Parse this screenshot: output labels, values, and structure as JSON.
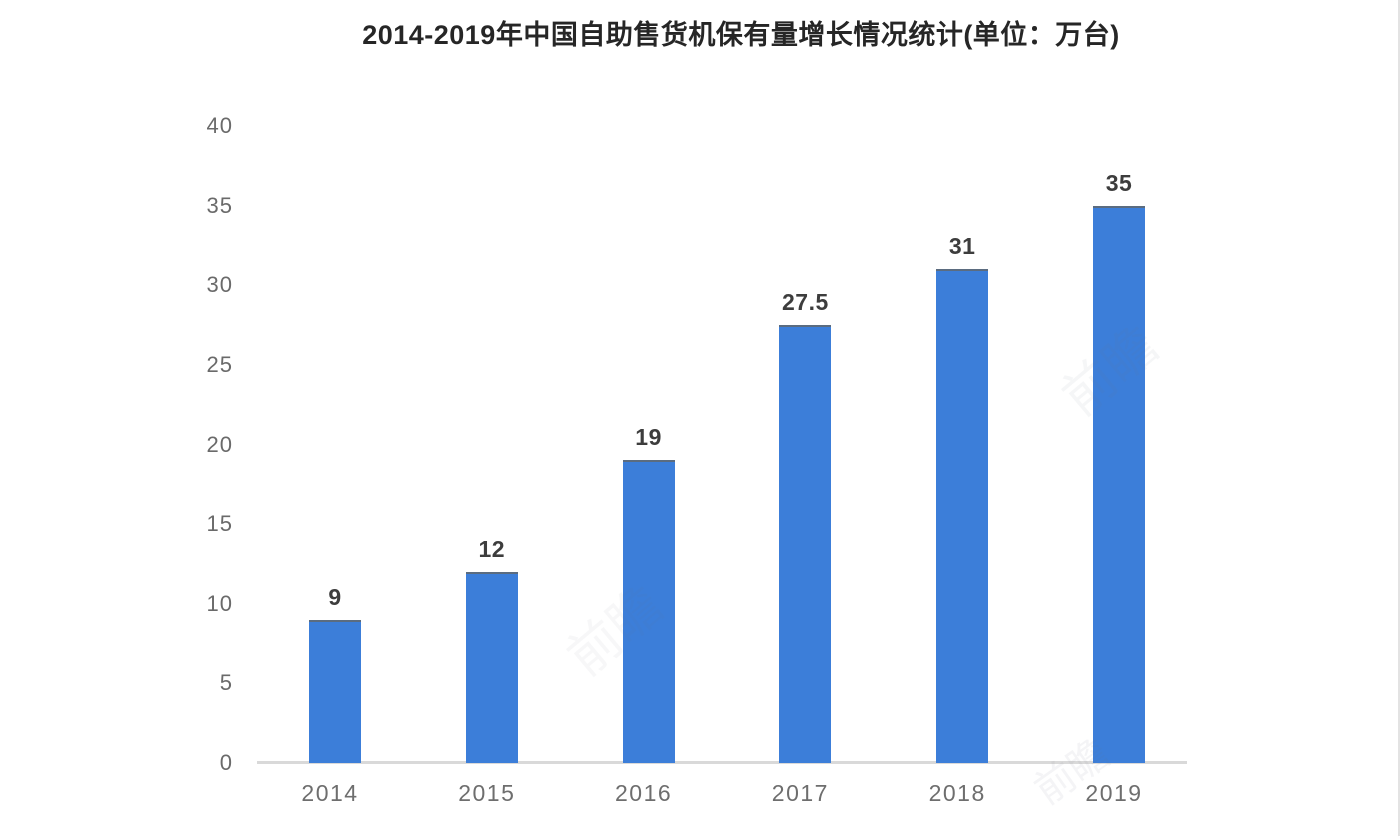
{
  "chart_data": {
    "type": "bar",
    "title": "2014-2019年中国自助售货机保有量增长情况统计(单位：万台)",
    "categories": [
      "2014",
      "2015",
      "2016",
      "2017",
      "2018",
      "2019"
    ],
    "values": [
      9,
      12,
      19,
      27.5,
      31,
      35
    ],
    "value_labels": [
      "9",
      "12",
      "19",
      "27.5",
      "31",
      "35"
    ],
    "yticks": [
      0,
      5,
      10,
      15,
      20,
      25,
      30,
      35,
      40
    ],
    "ylim": [
      0,
      40
    ],
    "xlabel": "",
    "ylabel": "",
    "grid": false,
    "legend": "none",
    "bar_color": "#3c7ed9",
    "bar_top_edge_color": "#5b6c80",
    "axis_line_color": "#d9d9d9",
    "tick_label_color": "#6a6a6a",
    "value_label_color": "#3d3d3d",
    "title_color": "#262626",
    "background_color": "#ffffff"
  },
  "watermark": {
    "text": "前瞻"
  }
}
